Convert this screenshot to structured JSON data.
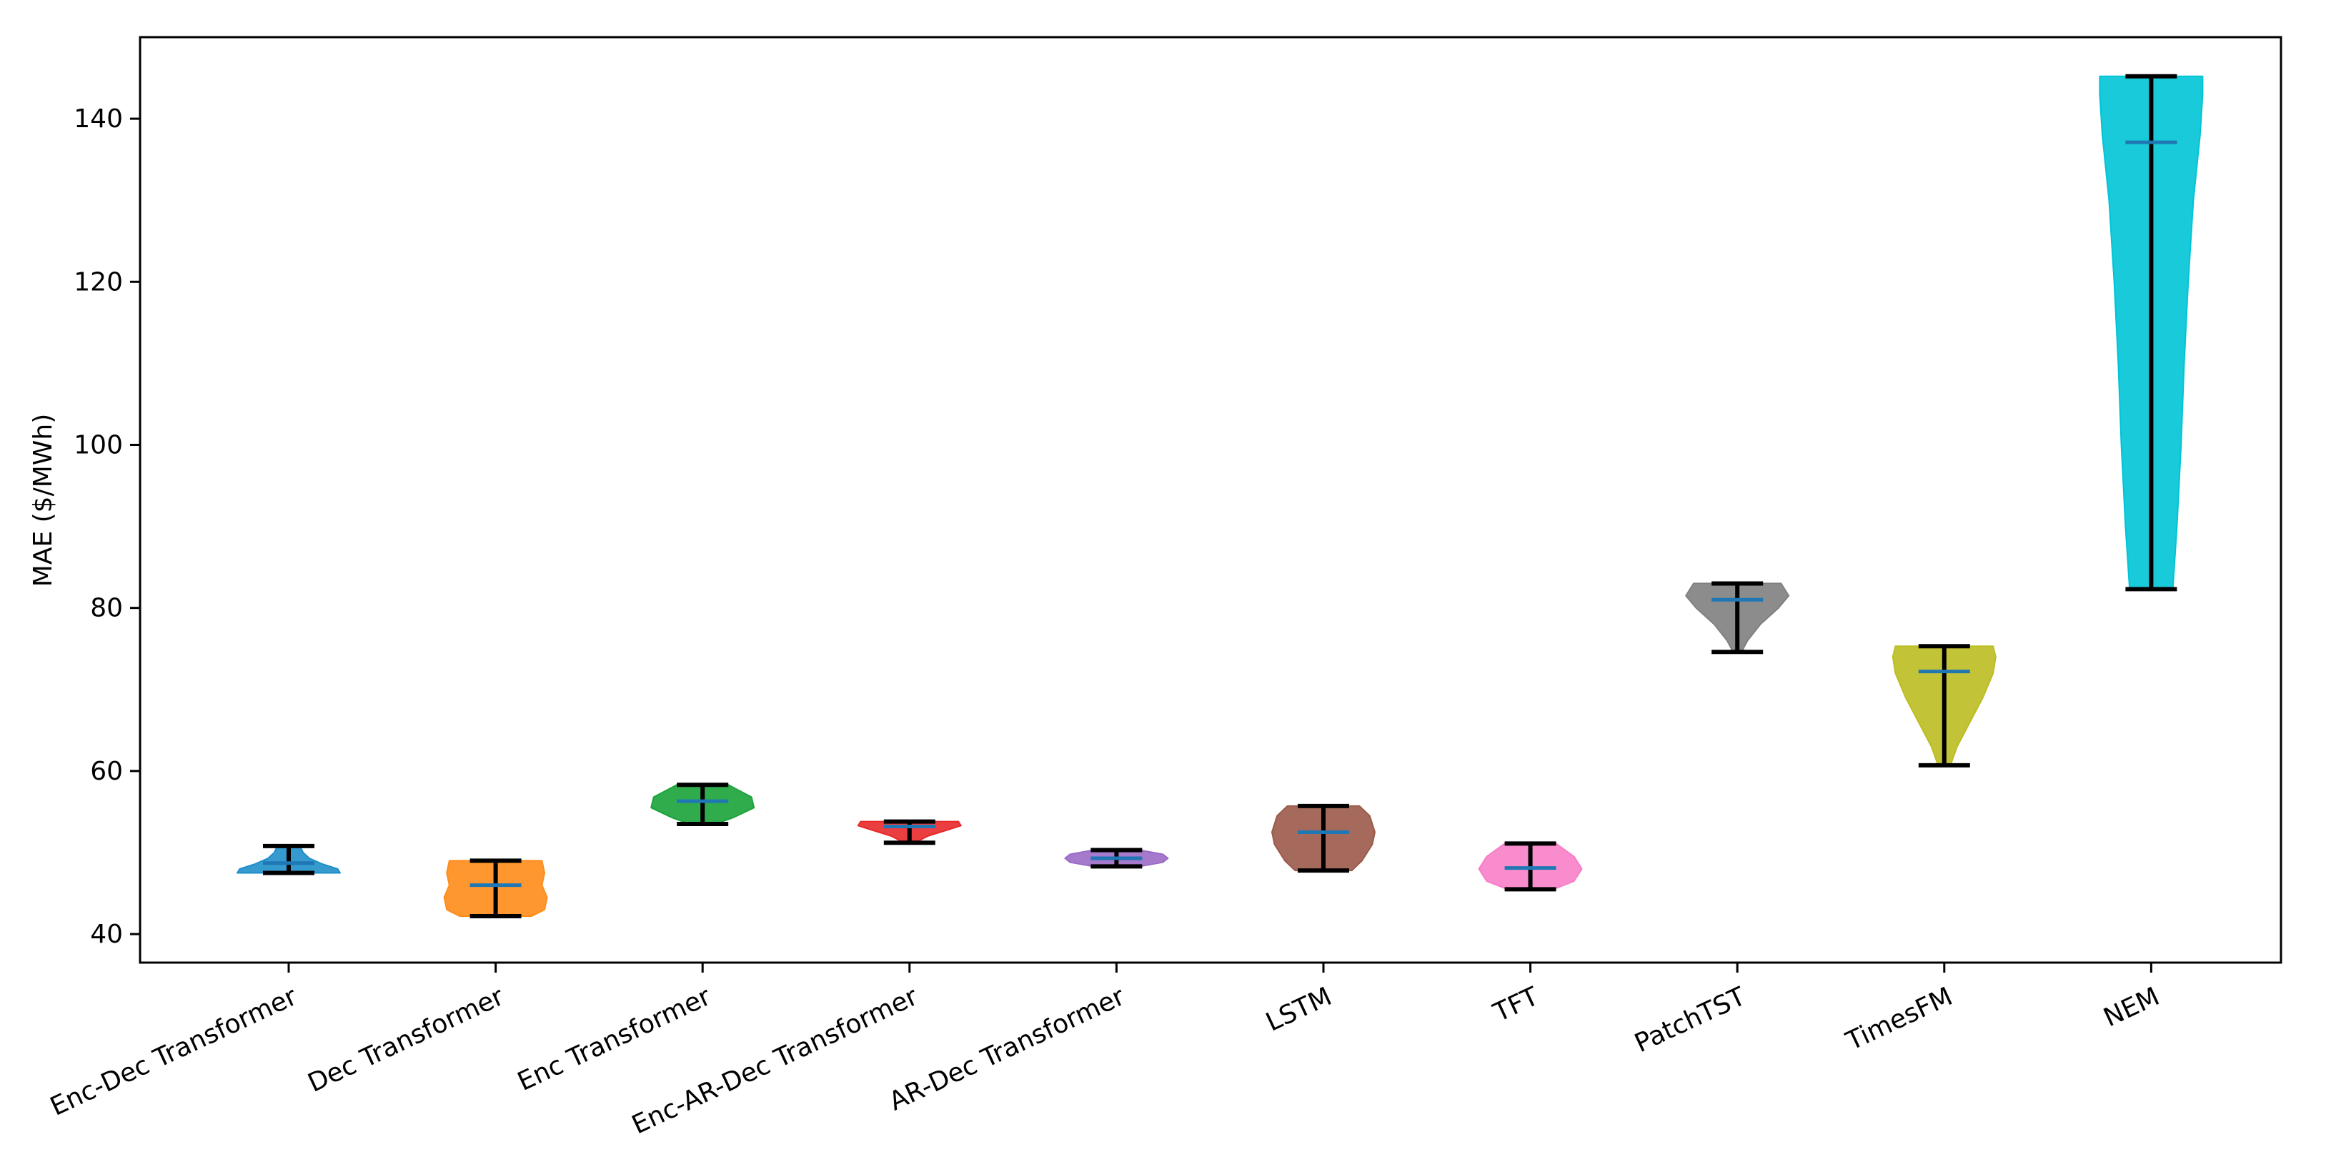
{
  "chart_data": {
    "type": "violin",
    "title": "",
    "xlabel": "",
    "ylabel": "MAE ($/MWh)",
    "ylim": [
      36.5,
      150
    ],
    "yticks": [
      40,
      60,
      80,
      100,
      120,
      140
    ],
    "grid": false,
    "legend": "none",
    "categories": [
      "Enc-Dec Transformer",
      "Dec Transformer",
      "Enc Transformer",
      "Enc-AR-Dec Transformer",
      "AR-Dec Transformer",
      "LSTM",
      "TFT",
      "PatchTST",
      "TimesFM",
      "NEM"
    ],
    "series": [
      {
        "category": "Enc-Dec Transformer",
        "min": 47.5,
        "max": 50.8,
        "mean": 48.7,
        "color": "#1f8fc9",
        "profile": [
          [
            47.5,
            1.0
          ],
          [
            48.0,
            0.95
          ],
          [
            48.6,
            0.65
          ],
          [
            49.3,
            0.4
          ],
          [
            50.0,
            0.28
          ],
          [
            50.8,
            0.22
          ]
        ]
      },
      {
        "category": "Dec Transformer",
        "min": 42.2,
        "max": 49.0,
        "mean": 46.0,
        "color": "#ff8c1a",
        "profile": [
          [
            42.2,
            0.7
          ],
          [
            43.0,
            0.95
          ],
          [
            44.5,
            1.0
          ],
          [
            46.0,
            0.9
          ],
          [
            47.5,
            0.95
          ],
          [
            49.0,
            0.9
          ]
        ]
      },
      {
        "category": "Enc Transformer",
        "min": 53.5,
        "max": 58.3,
        "mean": 56.3,
        "color": "#1aa33a",
        "profile": [
          [
            53.5,
            0.25
          ],
          [
            54.3,
            0.6
          ],
          [
            55.5,
            1.0
          ],
          [
            56.8,
            0.95
          ],
          [
            57.8,
            0.65
          ],
          [
            58.3,
            0.5
          ]
        ]
      },
      {
        "category": "Enc-AR-Dec Transformer",
        "min": 51.2,
        "max": 53.8,
        "mean": 53.2,
        "color": "#e8292b",
        "profile": [
          [
            51.2,
            0.1
          ],
          [
            52.0,
            0.35
          ],
          [
            52.8,
            0.75
          ],
          [
            53.3,
            1.0
          ],
          [
            53.8,
            0.95
          ]
        ]
      },
      {
        "category": "AR-Dec Transformer",
        "min": 48.3,
        "max": 50.3,
        "mean": 49.3,
        "color": "#9b6bc8",
        "profile": [
          [
            48.3,
            0.45
          ],
          [
            48.8,
            0.9
          ],
          [
            49.3,
            1.0
          ],
          [
            49.8,
            0.9
          ],
          [
            50.3,
            0.45
          ]
        ]
      },
      {
        "category": "LSTM",
        "min": 47.8,
        "max": 55.7,
        "mean": 52.5,
        "color": "#9b5a4a",
        "profile": [
          [
            47.8,
            0.55
          ],
          [
            49.0,
            0.75
          ],
          [
            51.0,
            0.95
          ],
          [
            52.5,
            1.0
          ],
          [
            54.5,
            0.9
          ],
          [
            55.7,
            0.7
          ]
        ]
      },
      {
        "category": "TFT",
        "min": 45.5,
        "max": 51.1,
        "mean": 48.1,
        "color": "#f77fc8",
        "profile": [
          [
            45.5,
            0.45
          ],
          [
            46.5,
            0.85
          ],
          [
            48.0,
            1.0
          ],
          [
            49.5,
            0.85
          ],
          [
            51.1,
            0.5
          ]
        ]
      },
      {
        "category": "PatchTST",
        "min": 74.6,
        "max": 83.0,
        "mean": 81.0,
        "color": "#808080",
        "profile": [
          [
            74.6,
            0.08
          ],
          [
            76.0,
            0.2
          ],
          [
            78.0,
            0.45
          ],
          [
            80.0,
            0.8
          ],
          [
            81.5,
            1.0
          ],
          [
            83.0,
            0.85
          ]
        ]
      },
      {
        "category": "TimesFM",
        "min": 60.7,
        "max": 75.3,
        "mean": 72.2,
        "color": "#bcbd22",
        "profile": [
          [
            60.7,
            0.12
          ],
          [
            63.0,
            0.25
          ],
          [
            66.0,
            0.5
          ],
          [
            69.0,
            0.75
          ],
          [
            72.0,
            0.95
          ],
          [
            74.0,
            1.0
          ],
          [
            75.3,
            0.95
          ]
        ]
      },
      {
        "category": "NEM",
        "min": 82.3,
        "max": 145.2,
        "mean": 137.1,
        "color": "#00c4d6",
        "profile": [
          [
            82.3,
            0.42
          ],
          [
            90.0,
            0.5
          ],
          [
            100.0,
            0.58
          ],
          [
            110.0,
            0.64
          ],
          [
            120.0,
            0.72
          ],
          [
            130.0,
            0.82
          ],
          [
            138.0,
            0.95
          ],
          [
            143.0,
            1.0
          ],
          [
            145.2,
            1.0
          ]
        ]
      }
    ]
  }
}
